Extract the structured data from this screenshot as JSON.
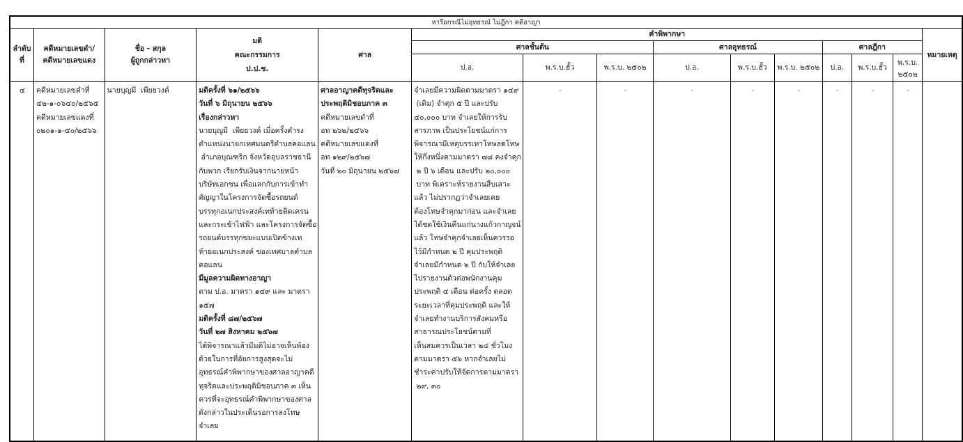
{
  "title": "หารือกรณีไม่อุทธรณ์ ไม่ฎีกา คดีอาญา",
  "headers": {
    "no": [
      "ลำดับ",
      "ที่"
    ],
    "case": [
      "คดีหมายเลขดำ/",
      "คดีหมายเลขแดง"
    ],
    "name": [
      "ชื่อ - สกุล",
      "ผู้ถูกกล่าวหา"
    ],
    "resolution": [
      "มติ",
      "คณะกรรมการ",
      "ป.ป.ช."
    ],
    "court": "ศาล",
    "judgment": "คำพิพากษา",
    "court_first": "ศาลชั้นต้น",
    "court_appeal": "ศาลอุทธรณ์",
    "court_supreme": "ศาลฎีกา",
    "sub": [
      "ป.อ.",
      "พ.ร.บ.ฮั้ว",
      "พ.ร.บ. ๒๕๐๒",
      "ป.อ.",
      "พ.ร.บ.ฮั้ว",
      "พ.ร.บ. ๒๕๐๒",
      "ป.อ.",
      "พ.ร.บ.ฮั้ว",
      "พ.ร.บ. ๒๕๐๒"
    ],
    "remark": "หมายเหตุ"
  },
  "row": {
    "no": "๔",
    "case": [
      "คดีหมายเลขดำที่",
      "๔๒-๑-๐๖๔๐/๒๕๖๕",
      "คดีหมายเลขแดงที่",
      "๐๒๐๑-๑-๕๐/๒๕๖๖"
    ],
    "name": "นายบุญมี  เพียยวงค์",
    "resolution": [
      {
        "t": "มติครั้งที่ ๖๑/๒๕๖๖",
        "b": true
      },
      {
        "t": "วันที่ ๖ มิถุนายน ๒๕๖๖",
        "b": true
      },
      {
        "t": "เรื่องกล่าวหา",
        "b": true
      },
      {
        "t": "นายบุญมี  เพียยวงค์ เมื่อครั้งดำรง",
        "b": false
      },
      {
        "t": "ตำแหน่งนายกเทศมนตรีตำบลคอแลน",
        "b": false
      },
      {
        "t": " อำเภอบุณฑริก จังหวัดอุบลราชธานี",
        "b": false
      },
      {
        "t": "กับพวก เรียกรับเงินจากนายหน้า",
        "b": false
      },
      {
        "t": "บริษัทเอกชน เพื่อแลกกับการเข้าทำ",
        "b": false
      },
      {
        "t": "สัญญาในโครงการจัดซื้อรถยนต์",
        "b": false
      },
      {
        "t": "บรรทุกอเนกประสงค์เทท้ายติดเครน",
        "b": false
      },
      {
        "t": "และกระเช้าไฟฟ้า และโครงการจัดซื้อ",
        "b": false
      },
      {
        "t": "รถยนต์บรรทุกขยะแบบเปิดข้างเท",
        "b": false
      },
      {
        "t": "ท้ายอเนกประสงค์ ของเทศบาลตำบล",
        "b": false
      },
      {
        "t": "คอแลน",
        "b": false
      },
      {
        "t": "มีมูลความผิดทางอาญา",
        "b": true
      },
      {
        "t": "ตาม ป.อ. มาตรา ๑๔๙ และ มาตรา",
        "b": false
      },
      {
        "t": "๑๕๗",
        "b": false
      },
      {
        "t": "มติครั้งที่ ๘๗/๒๕๖๗",
        "b": true
      },
      {
        "t": "วันที่ ๒๗ สิงหาคม ๒๕๖๗",
        "b": true
      },
      {
        "t": "ได้พิจารณาแล้วมีมติไม่อาจเห็นพ้อง",
        "b": false
      },
      {
        "t": "ด้วยในการที่อัยการสูงสุดจะไม่",
        "b": false
      },
      {
        "t": "อุทธรณ์คำพิพากษาของศาลอาญาคดี",
        "b": false
      },
      {
        "t": "ทุจริตและประพฤติมิชอบภาค ๓ เห็น",
        "b": false
      },
      {
        "t": "ควรที่จะอุทธรณ์คำพิพากษาของศาล",
        "b": false
      },
      {
        "t": "ดังกล่าวในประเด็นรอการลงโทษ",
        "b": false
      },
      {
        "t": "จำเลย",
        "b": false
      }
    ],
    "court": [
      {
        "t": "ศาลอาญาคดีทุจริตและ",
        "b": true
      },
      {
        "t": "ประพฤติมิชอบภาค ๓",
        "b": true
      },
      {
        "t": "คดีหมายเลขดำที่",
        "b": false
      },
      {
        "t": "อท ๒๖๒/๒๕๖๖",
        "b": false
      },
      {
        "t": "คดีหมายเลขแดงที่",
        "b": false
      },
      {
        "t": "อท ๑๒๙/๒๕๖๗",
        "b": false
      },
      {
        "t": "วันที่ ๒๐ มิถุนายน ๒๕๖๗",
        "b": false
      }
    ],
    "first_po": [
      "จำเลยมีความผิดตามมาตรา ๑๔๙",
      " (เดิม) จำคุก ๕ ปี และปรับ",
      "๔๐,๐๐๐ บาท จำเลยให้การรับ",
      "สารภาพ เป็นประโยชน์แก่การ",
      "พิจารณามีเหตุบรรเทาโทษลดโทษ",
      "ให้กึ่งหนึ่งตามมาตรา ๗๘ คงจำคุก",
      " ๒ ปี ๖ เดือน และปรับ ๒๐,๐๐๐",
      " บาท พิเคราะห์รายงานสืบเสาะ",
      "แล้ว ไม่ปรากฏว่าจำเลยเคย",
      "ต้องโทษจำคุกมาก่อน และจำเลย",
      "ได้ชดใช้เงินคืนแก่นางแก้วกาญจน์",
      "แล้ว โทษจำคุกจำเลยเห็นควรรอ",
      "ไว้มีกำหนด ๒ ปี คุมประพฤติ",
      "จำเลยมีกำหนด ๒ ปี กับให้จำเลย",
      "ไปรายงานตัวต่อพนักงานคุม",
      "ประพฤติ ๔ เดือน ต่อครั้ง ตลอด",
      "ระยะเวลาที่คุมประพฤติ และให้",
      "จำเลยทำงานบริการสังคมหรือ",
      "สาธารณประโยชน์ตามที่",
      "เห็นสมควรเป็นเวลา ๒๔ ชั่วโมง",
      "ตามมาตรา ๕๖ หากจำเลยไม่",
      "ชำระค่าปรับให้จัดการตามมาตรา",
      " ๒๙, ๓๐"
    ],
    "dashes": [
      "-",
      "-",
      "-",
      "-",
      "-",
      "-",
      "-",
      "-"
    ],
    "remark": ""
  }
}
